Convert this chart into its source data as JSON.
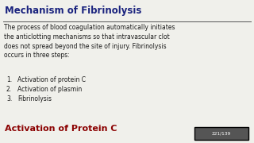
{
  "title": "Mechanism of Fibrinolysis",
  "title_color": "#1a237e",
  "title_fontsize": 8.5,
  "body_text": "The process of blood coagulation automatically initiates\nthe anticlotting mechanisms so that intravascular clot\ndoes not spread beyond the site of injury. Fibrinolysis\noccurs in three steps:",
  "body_fontsize": 5.5,
  "body_color": "#1a1a1a",
  "list_items": [
    "Activation of protein C",
    "Activation of plasmin",
    "Fibrinolysis"
  ],
  "list_fontsize": 5.5,
  "list_color": "#1a1a1a",
  "footer_text": "Activation of Protein C",
  "footer_color": "#8b0000",
  "footer_fontsize": 8.0,
  "slide_number": "221/139",
  "slide_number_bg": "#555555",
  "slide_number_color": "#ffffff",
  "slide_number_fontsize": 4.2,
  "background_color": "#f0f0eb",
  "line_color": "#555555"
}
